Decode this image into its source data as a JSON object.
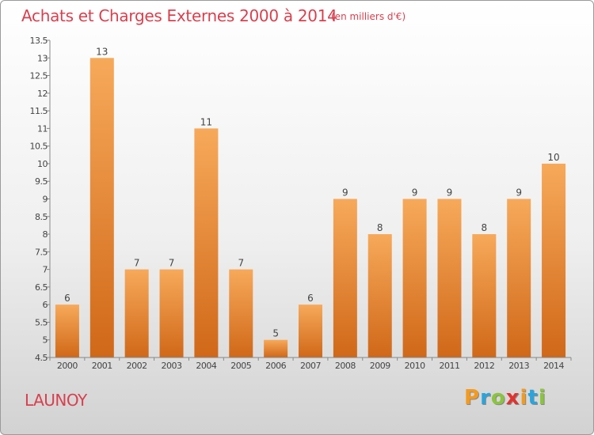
{
  "title": "Achats et Charges Externes 2000 à 2014",
  "unit": "(en milliers d'€)",
  "location": "LAUNOY",
  "brand": {
    "letters": [
      "P",
      "r",
      "o",
      "x",
      "i",
      "t",
      "i"
    ],
    "colors": [
      "#f39a1e",
      "#2aa4dc",
      "#8bc43f",
      "#e2322e",
      "#f39a1e",
      "#2aa4dc",
      "#8bc43f"
    ]
  },
  "colors": {
    "title": "#d8404f",
    "bar_light": "#f7a95a",
    "bar_dark": "#d06818",
    "axis": "#888888"
  },
  "chart_data": {
    "type": "bar",
    "categories": [
      "2000",
      "2001",
      "2002",
      "2003",
      "2004",
      "2005",
      "2006",
      "2007",
      "2008",
      "2009",
      "2010",
      "2011",
      "2012",
      "2013",
      "2014"
    ],
    "values": [
      6,
      13,
      7,
      7,
      11,
      7,
      5,
      6,
      9,
      8,
      9,
      9,
      8,
      9,
      10
    ],
    "data_labels": [
      "6",
      "13",
      "7",
      "7",
      "11",
      "7",
      "5",
      "6",
      "9",
      "8",
      "9",
      "9",
      "8",
      "9",
      "10"
    ],
    "ylim": [
      4.5,
      13.5
    ],
    "yticks": [
      "4.5",
      "5",
      "5.5",
      "6",
      "6.5",
      "7",
      "7.5",
      "8",
      "8.5",
      "9",
      "9.5",
      "10",
      "10.5",
      "11",
      "11.5",
      "12",
      "12.5",
      "13",
      "13.5"
    ],
    "grid": false,
    "xlabel": "",
    "ylabel": ""
  }
}
